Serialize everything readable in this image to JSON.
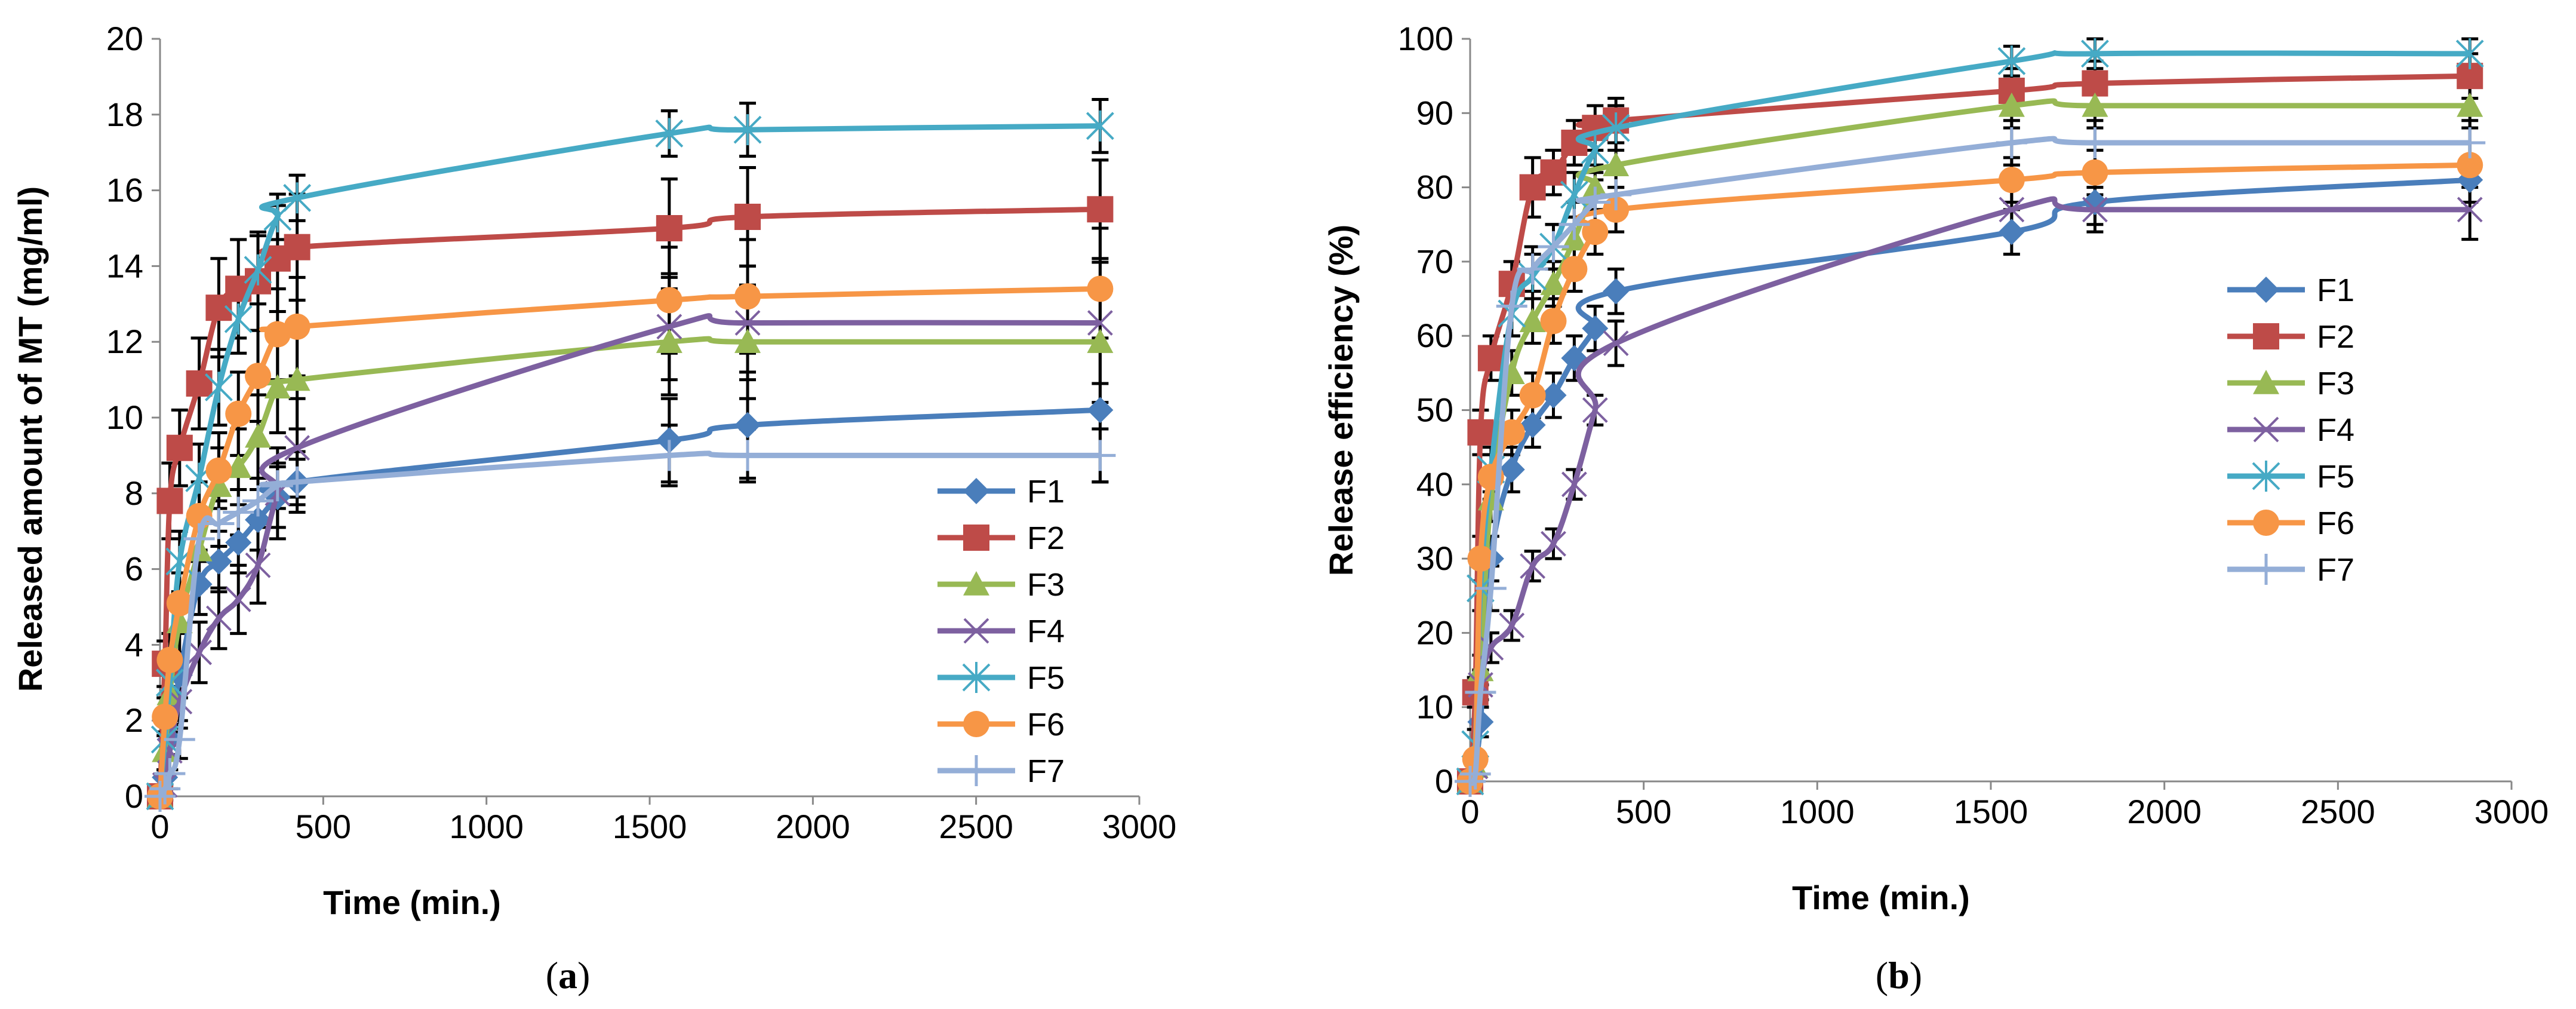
{
  "chart_data": [
    {
      "type": "line",
      "panel": "a",
      "caption": {
        "open": "(",
        "letter": "a",
        "close": ")"
      },
      "xlabel": "Time (min.)",
      "ylabel": "Released amount of MT (mg/ml)",
      "xlim": [
        0,
        3000
      ],
      "ylim": [
        0,
        20
      ],
      "xticks": [
        0,
        500,
        1000,
        1500,
        2000,
        2500,
        3000
      ],
      "yticks": [
        0,
        2,
        4,
        6,
        8,
        10,
        12,
        14,
        16,
        18,
        20
      ],
      "legend_position": "bottom-right",
      "x": [
        0,
        15,
        30,
        60,
        120,
        180,
        240,
        300,
        360,
        420,
        1560,
        1800,
        2880
      ],
      "series": [
        {
          "name": "F1",
          "color": "#4A7EBB",
          "marker": "diamond",
          "values": [
            0,
            0.5,
            1.5,
            3.2,
            5.6,
            6.2,
            6.7,
            7.3,
            7.9,
            8.3,
            9.4,
            9.8,
            10.2
          ],
          "err": [
            0,
            0.2,
            0.4,
            0.6,
            0.8,
            0.8,
            0.8,
            0.8,
            0.8,
            0.8,
            1.1,
            1.4,
            1.9
          ]
        },
        {
          "name": "F2",
          "color": "#BE4B48",
          "marker": "square",
          "values": [
            0,
            3.5,
            7.8,
            9.2,
            10.9,
            12.9,
            13.4,
            13.6,
            14.2,
            14.5,
            15.0,
            15.3,
            15.5
          ],
          "err": [
            0,
            0.6,
            1.0,
            1.0,
            1.2,
            1.3,
            1.3,
            1.3,
            1.4,
            1.4,
            1.3,
            1.3,
            1.3
          ]
        },
        {
          "name": "F3",
          "color": "#98B954",
          "marker": "triangle",
          "values": [
            0,
            1.2,
            2.7,
            4.6,
            6.5,
            8.2,
            8.7,
            9.5,
            10.8,
            11.0,
            12.0,
            12.0,
            12.0
          ],
          "err": [
            0,
            0.5,
            0.6,
            0.8,
            1.0,
            1.0,
            1.0,
            1.1,
            1.2,
            1.3,
            1.4,
            1.5,
            1.6
          ]
        },
        {
          "name": "F4",
          "color": "#7D60A0",
          "marker": "x",
          "values": [
            0,
            0.3,
            1.2,
            2.5,
            3.8,
            4.7,
            5.2,
            6.1,
            8.0,
            9.2,
            12.4,
            12.5,
            12.5
          ],
          "err": [
            0,
            0.3,
            0.5,
            0.7,
            0.8,
            0.8,
            0.9,
            1.0,
            1.2,
            1.3,
            1.4,
            1.5,
            1.6
          ]
        },
        {
          "name": "F5",
          "color": "#46AAC5",
          "marker": "asterisk",
          "values": [
            0,
            1.5,
            3.0,
            6.2,
            8.4,
            10.8,
            12.6,
            13.9,
            15.3,
            15.8,
            17.5,
            17.6,
            17.7
          ],
          "err": [
            0,
            0.4,
            0.6,
            0.8,
            0.9,
            1.0,
            0.9,
            0.9,
            0.6,
            0.6,
            0.6,
            0.7,
            0.7
          ]
        },
        {
          "name": "F6",
          "color": "#F79646",
          "marker": "circle",
          "values": [
            0,
            2.1,
            3.6,
            5.1,
            7.4,
            8.6,
            10.1,
            11.1,
            12.2,
            12.4,
            13.1,
            13.2,
            13.4
          ],
          "err": [
            0,
            0.5,
            0.7,
            0.8,
            0.9,
            1.0,
            1.1,
            1.2,
            1.2,
            1.3,
            1.4,
            1.5,
            1.6
          ]
        },
        {
          "name": "F7",
          "color": "#94AED7",
          "marker": "plus",
          "values": [
            0,
            0.2,
            0.6,
            1.5,
            6.8,
            7.2,
            7.5,
            7.8,
            8.2,
            8.3,
            9.0,
            9.0,
            9.0
          ],
          "err": [
            0,
            0.3,
            0.4,
            0.5,
            0.6,
            0.6,
            0.6,
            0.6,
            0.6,
            0.6,
            0.8,
            0.7,
            0.7
          ]
        }
      ]
    },
    {
      "type": "line",
      "panel": "b",
      "caption": {
        "open": "(",
        "letter": "b",
        "close": ")"
      },
      "xlabel": "Time (min.)",
      "ylabel": "Release efficiency (%)",
      "xlim": [
        0,
        3000
      ],
      "ylim": [
        0,
        100
      ],
      "xticks": [
        0,
        500,
        1000,
        1500,
        2000,
        2500,
        3000
      ],
      "yticks": [
        0,
        10,
        20,
        30,
        40,
        50,
        60,
        70,
        80,
        90,
        100
      ],
      "legend_position": "right",
      "x": [
        0,
        15,
        30,
        60,
        120,
        180,
        240,
        300,
        360,
        420,
        1560,
        1800,
        2880
      ],
      "series": [
        {
          "name": "F1",
          "color": "#4A7EBB",
          "marker": "diamond",
          "values": [
            0,
            3,
            8,
            30,
            42,
            48,
            52,
            57,
            61,
            66,
            74,
            78,
            81
          ],
          "err": [
            0,
            1,
            2,
            3,
            3,
            3,
            3,
            3,
            3,
            3,
            3,
            3,
            3
          ]
        },
        {
          "name": "F2",
          "color": "#BE4B48",
          "marker": "square",
          "values": [
            0,
            12,
            47,
            57,
            67,
            80,
            82,
            86,
            88,
            89,
            93,
            94,
            95
          ],
          "err": [
            0,
            2,
            3,
            3,
            3,
            4,
            3,
            3,
            3,
            3,
            3,
            3,
            3
          ]
        },
        {
          "name": "F3",
          "color": "#98B954",
          "marker": "triangle",
          "values": [
            0,
            2,
            15,
            38,
            55,
            62,
            67,
            73,
            80,
            83,
            91,
            91,
            91
          ],
          "err": [
            0,
            1,
            2,
            3,
            3,
            3,
            3,
            3,
            3,
            3,
            3,
            3,
            3
          ]
        },
        {
          "name": "F4",
          "color": "#7D60A0",
          "marker": "x",
          "values": [
            0,
            2,
            13,
            18,
            21,
            29,
            32,
            40,
            50,
            59,
            77,
            77,
            77
          ],
          "err": [
            0,
            1,
            2,
            2,
            2,
            2,
            2,
            2,
            2,
            3,
            3,
            3,
            4
          ]
        },
        {
          "name": "F5",
          "color": "#46AAC5",
          "marker": "asterisk",
          "values": [
            0,
            5,
            26,
            42,
            63,
            68,
            72,
            79,
            85,
            88,
            97,
            98,
            98
          ],
          "err": [
            0,
            2,
            3,
            3,
            3,
            3,
            3,
            3,
            3,
            3,
            2,
            2,
            2
          ]
        },
        {
          "name": "F6",
          "color": "#F79646",
          "marker": "circle",
          "values": [
            0,
            3,
            30,
            41,
            47,
            52,
            62,
            69,
            74,
            77,
            81,
            82,
            83
          ],
          "err": [
            0,
            1,
            3,
            3,
            3,
            3,
            3,
            3,
            3,
            3,
            3,
            3,
            3
          ]
        },
        {
          "name": "F7",
          "color": "#94AED7",
          "marker": "plus",
          "values": [
            0,
            1,
            12,
            26,
            64,
            69,
            72,
            75,
            78,
            79,
            86,
            86,
            86
          ],
          "err": [
            0,
            1,
            2,
            3,
            4,
            3,
            3,
            3,
            3,
            3,
            3,
            3,
            3
          ]
        }
      ]
    }
  ]
}
